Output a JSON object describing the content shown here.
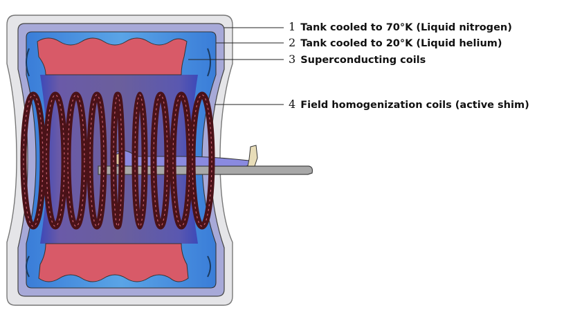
{
  "labels": [
    {
      "number": "1",
      "text": "Tank cooled to 70°K (Liquid nitrogen)"
    },
    {
      "number": "2",
      "text": "Tank cooled to 20°K (Liquid helium)"
    },
    {
      "number": "3",
      "text": "Superconducting coils"
    },
    {
      "number": "4",
      "text": "Field homogenization coils (active shim)"
    }
  ],
  "colors": {
    "outer_shell": "#e5e5e8",
    "nitrogen_tank": "#a7a9d8",
    "helium_tank": "#4f94dc",
    "superconducting_coil": "#d85a68",
    "bore": "#6b5f9c",
    "shim_coil": "#4a1218",
    "patient": "#8a8ae0",
    "table": "#a8a8a8"
  }
}
